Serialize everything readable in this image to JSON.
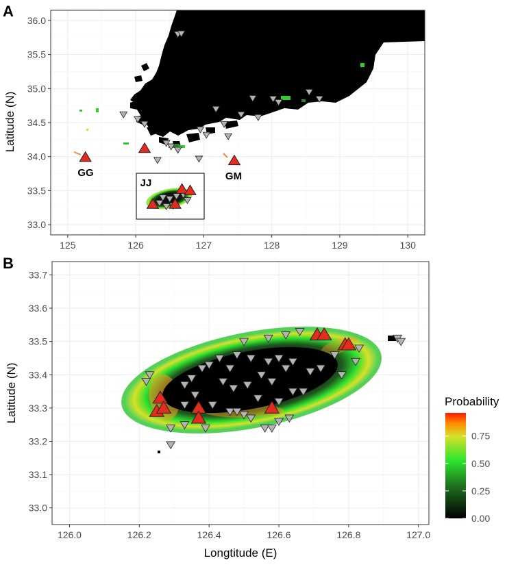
{
  "panels": {
    "a": {
      "label": "A",
      "ylabel": "Latitude (N)",
      "xticks": [
        "125",
        "126",
        "127",
        "128",
        "129",
        "130"
      ],
      "yticks": [
        "33.0",
        "33.5",
        "34.0",
        "34.5",
        "35.0",
        "35.5",
        "36.0"
      ],
      "xlim": [
        124.75,
        130.25
      ],
      "ylim": [
        32.85,
        36.15
      ],
      "sites": [
        {
          "label": "GG",
          "lon": 125.26,
          "lat": 33.99
        },
        {
          "label": "GM",
          "lon": 127.45,
          "lat": 33.94
        },
        {
          "label": "JJ",
          "lon": 126.55,
          "lat": 33.48
        }
      ]
    },
    "b": {
      "label": "B",
      "xlabel": "Longtitude (E)",
      "ylabel": "Latitude (N)",
      "xticks": [
        "126.0",
        "126.2",
        "126.4",
        "126.6",
        "126.8",
        "127.0"
      ],
      "yticks": [
        "33.0",
        "33.1",
        "33.2",
        "33.3",
        "33.4",
        "33.5",
        "33.6",
        "33.7"
      ],
      "xlim": [
        125.95,
        127.03
      ],
      "ylim": [
        32.95,
        33.74
      ]
    }
  },
  "legend": {
    "title": "Probability",
    "ticks": [
      "0.00",
      "0.25",
      "0.50",
      "0.75"
    ]
  },
  "colors": {
    "land": "#000000",
    "habitat_low": "#0f3d0f",
    "habitat_mid": "#33dd33",
    "habitat_high": "#ffcc00",
    "habitat_peak": "#ff3300",
    "presence_marker": "#e32b1e",
    "absence_marker": "#b3b3b3"
  },
  "chart_data": [
    {
      "type": "scatter",
      "panel": "A",
      "xlabel": "",
      "ylabel": "Latitude (N)",
      "xlim": [
        124.75,
        130.25
      ],
      "ylim": [
        32.85,
        36.15
      ],
      "grid": true,
      "series": [
        {
          "marker": "triangle-up",
          "color": "#e32b1e",
          "points": [
            [
              125.26,
              33.99
            ],
            [
              126.13,
              34.12
            ],
            [
              127.45,
              33.94
            ],
            [
              126.25,
              33.3
            ],
            [
              126.68,
              33.52
            ],
            [
              126.8,
              33.5
            ],
            [
              126.58,
              33.3
            ]
          ]
        },
        {
          "marker": "triangle-down",
          "color": "#b3b3b3",
          "points": [
            [
              126.62,
              35.8
            ],
            [
              126.67,
              35.81
            ],
            [
              125.82,
              34.62
            ],
            [
              126.03,
              34.55
            ],
            [
              126.13,
              34.48
            ],
            [
              126.45,
              34.2
            ],
            [
              126.52,
              34.15
            ],
            [
              126.62,
              34.1
            ],
            [
              126.95,
              34.4
            ],
            [
              127.04,
              34.32
            ],
            [
              127.18,
              34.7
            ],
            [
              127.3,
              34.48
            ],
            [
              127.36,
              34.3
            ],
            [
              127.55,
              34.62
            ],
            [
              127.72,
              34.86
            ],
            [
              127.8,
              34.58
            ],
            [
              128.02,
              34.85
            ],
            [
              128.1,
              34.8
            ],
            [
              128.55,
              34.95
            ],
            [
              128.7,
              34.85
            ],
            [
              126.32,
              33.95
            ],
            [
              126.93,
              33.97
            ],
            [
              126.35,
              33.32
            ],
            [
              126.4,
              33.4
            ],
            [
              126.5,
              33.38
            ],
            [
              126.6,
              33.42
            ],
            [
              126.7,
              33.44
            ],
            [
              126.76,
              33.36
            ],
            [
              126.45,
              33.27
            ],
            [
              126.55,
              33.28
            ]
          ]
        }
      ]
    },
    {
      "type": "scatter",
      "panel": "B",
      "title": "",
      "xlabel": "Longtitude (E)",
      "ylabel": "Latitude (N)",
      "xlim": [
        125.95,
        127.03
      ],
      "ylim": [
        32.95,
        33.74
      ],
      "grid": true,
      "legend": "right",
      "series": [
        {
          "marker": "triangle-up",
          "color": "#e32b1e",
          "points": [
            [
              126.26,
              33.33
            ],
            [
              126.25,
              33.29
            ],
            [
              126.27,
              33.3
            ],
            [
              126.37,
              33.3
            ],
            [
              126.37,
              33.27
            ],
            [
              126.58,
              33.3
            ],
            [
              126.71,
              33.52
            ],
            [
              126.73,
              33.52
            ],
            [
              126.79,
              33.49
            ],
            [
              126.8,
              33.49
            ]
          ]
        },
        {
          "marker": "triangle-down",
          "color": "#b3b3b3",
          "points": [
            [
              126.23,
              33.4
            ],
            [
              126.22,
              33.38
            ],
            [
              126.29,
              33.24
            ],
            [
              126.29,
              33.19
            ],
            [
              126.33,
              33.31
            ],
            [
              126.33,
              33.25
            ],
            [
              126.36,
              33.34
            ],
            [
              126.39,
              33.24
            ],
            [
              126.41,
              33.31
            ],
            [
              126.46,
              33.29
            ],
            [
              126.48,
              33.29
            ],
            [
              126.5,
              33.28
            ],
            [
              126.52,
              33.27
            ],
            [
              126.56,
              33.24
            ],
            [
              126.58,
              33.24
            ],
            [
              126.6,
              33.26
            ],
            [
              126.63,
              33.27
            ],
            [
              126.33,
              33.37
            ],
            [
              126.35,
              33.39
            ],
            [
              126.38,
              33.42
            ],
            [
              126.4,
              33.43
            ],
            [
              126.43,
              33.45
            ],
            [
              126.46,
              33.42
            ],
            [
              126.48,
              33.46
            ],
            [
              126.52,
              33.45
            ],
            [
              126.57,
              33.44
            ],
            [
              126.6,
              33.45
            ],
            [
              126.62,
              33.42
            ],
            [
              126.64,
              33.44
            ],
            [
              126.44,
              33.38
            ],
            [
              126.47,
              33.36
            ],
            [
              126.51,
              33.37
            ],
            [
              126.55,
              33.4
            ],
            [
              126.58,
              33.38
            ],
            [
              126.41,
              33.31
            ],
            [
              126.54,
              33.33
            ],
            [
              126.6,
              33.32
            ],
            [
              126.64,
              33.35
            ],
            [
              126.67,
              33.35
            ],
            [
              126.69,
              33.41
            ],
            [
              126.72,
              33.42
            ],
            [
              126.76,
              33.46
            ],
            [
              126.78,
              33.4
            ],
            [
              126.82,
              33.44
            ],
            [
              126.83,
              33.48
            ],
            [
              126.5,
              33.5
            ],
            [
              126.57,
              33.51
            ],
            [
              126.62,
              33.52
            ],
            [
              126.66,
              33.53
            ],
            [
              126.94,
              33.51
            ],
            [
              126.95,
              33.5
            ]
          ]
        }
      ]
    }
  ]
}
